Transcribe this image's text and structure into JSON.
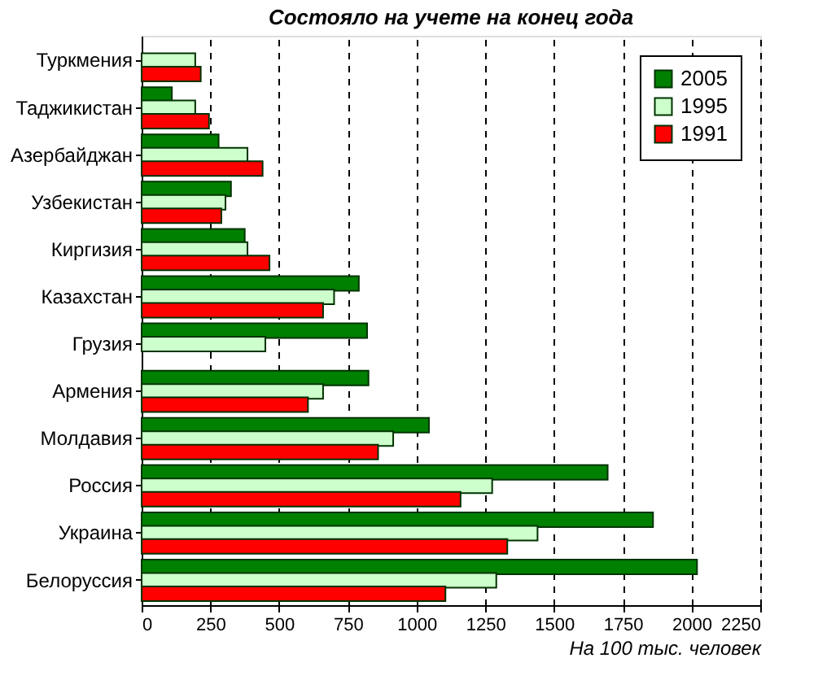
{
  "chart_data": {
    "type": "bar",
    "orientation": "horizontal",
    "title": "Состояло на учете на конец года",
    "xlabel": "На 100 тыс. человек",
    "categories": [
      "Туркмения",
      "Таджикистан",
      "Азербайджан",
      "Узбекистан",
      "Киргизия",
      "Казахстан",
      "Грузия",
      "Армения",
      "Молдавия",
      "Россия",
      "Украина",
      "Белоруссия"
    ],
    "series": [
      {
        "name": "2005",
        "color": "#008000",
        "values": [
          null,
          110,
          280,
          325,
          375,
          790,
          820,
          825,
          1045,
          1695,
          1860,
          2020
        ]
      },
      {
        "name": "1995",
        "color": "#ccffcc",
        "values": [
          195,
          195,
          385,
          305,
          385,
          700,
          450,
          660,
          915,
          1275,
          1440,
          1290
        ]
      },
      {
        "name": "1991",
        "color": "#ff0000",
        "values": [
          215,
          245,
          440,
          290,
          465,
          660,
          null,
          605,
          860,
          1160,
          1330,
          1105
        ]
      }
    ],
    "xlim": [
      0,
      2250
    ],
    "xticks": [
      0,
      250,
      500,
      750,
      1000,
      1250,
      1500,
      1750,
      2000,
      2250
    ],
    "grid": "x",
    "legend": "top right"
  }
}
